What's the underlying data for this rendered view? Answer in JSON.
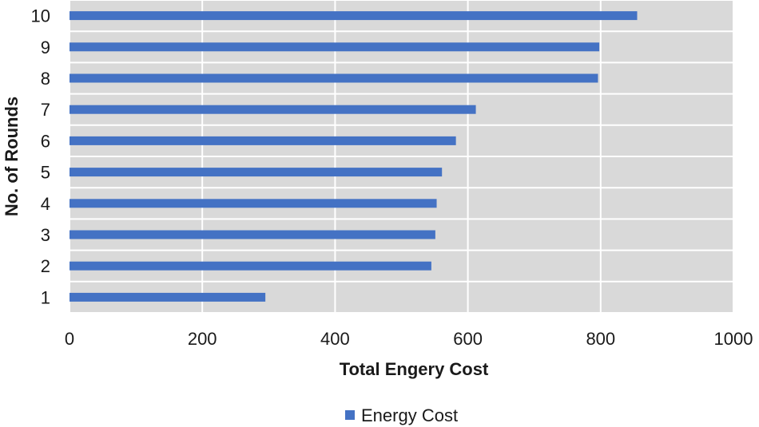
{
  "chart_data": {
    "type": "bar",
    "orientation": "horizontal",
    "categories": [
      "1",
      "2",
      "3",
      "4",
      "5",
      "6",
      "7",
      "8",
      "9",
      "10"
    ],
    "series": [
      {
        "name": "Energy Cost",
        "values": [
          295,
          545,
          551,
          553,
          561,
          582,
          612,
          796,
          798,
          855
        ]
      }
    ],
    "title": "",
    "xlabel": "Total Engery Cost",
    "ylabel": "No. of Rounds",
    "xlim": [
      0,
      1000
    ],
    "xticks": [
      0,
      200,
      400,
      600,
      800,
      1000
    ],
    "grid": true,
    "legend_position": "bottom",
    "colors": {
      "bar": "#4472c4",
      "plot_background": "#d9d9d9",
      "grid": "#ffffff"
    }
  }
}
